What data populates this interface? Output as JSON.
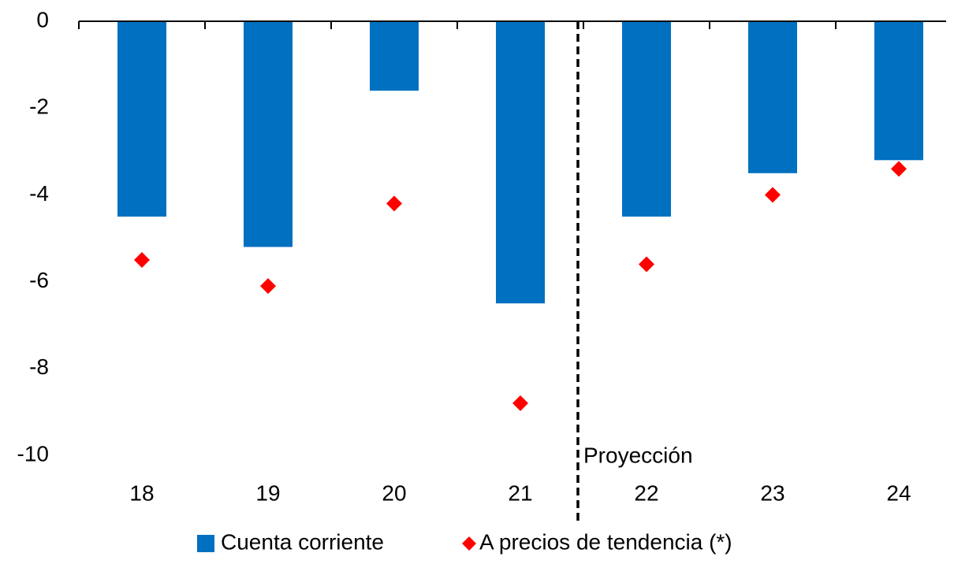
{
  "chart_data": {
    "type": "bar",
    "categories": [
      "18",
      "19",
      "20",
      "21",
      "22",
      "23",
      "24"
    ],
    "series": [
      {
        "name": "Cuenta corriente",
        "color": "#0070c0",
        "type": "bar",
        "values": [
          -4.5,
          -5.2,
          -1.6,
          -6.5,
          -4.5,
          -3.5,
          -3.2
        ]
      },
      {
        "name": "A precios de tendencia (*)",
        "color": "#ff0000",
        "type": "scatter",
        "values": [
          -5.5,
          -6.1,
          -4.2,
          -8.8,
          -5.6,
          -4.0,
          -3.4
        ]
      }
    ],
    "annotations": [
      "Proyección"
    ],
    "ylim": [
      -10,
      0
    ],
    "yticks": [
      0,
      -2,
      -4,
      -6,
      -8,
      -10
    ],
    "grid": false,
    "legend": "bottom"
  }
}
